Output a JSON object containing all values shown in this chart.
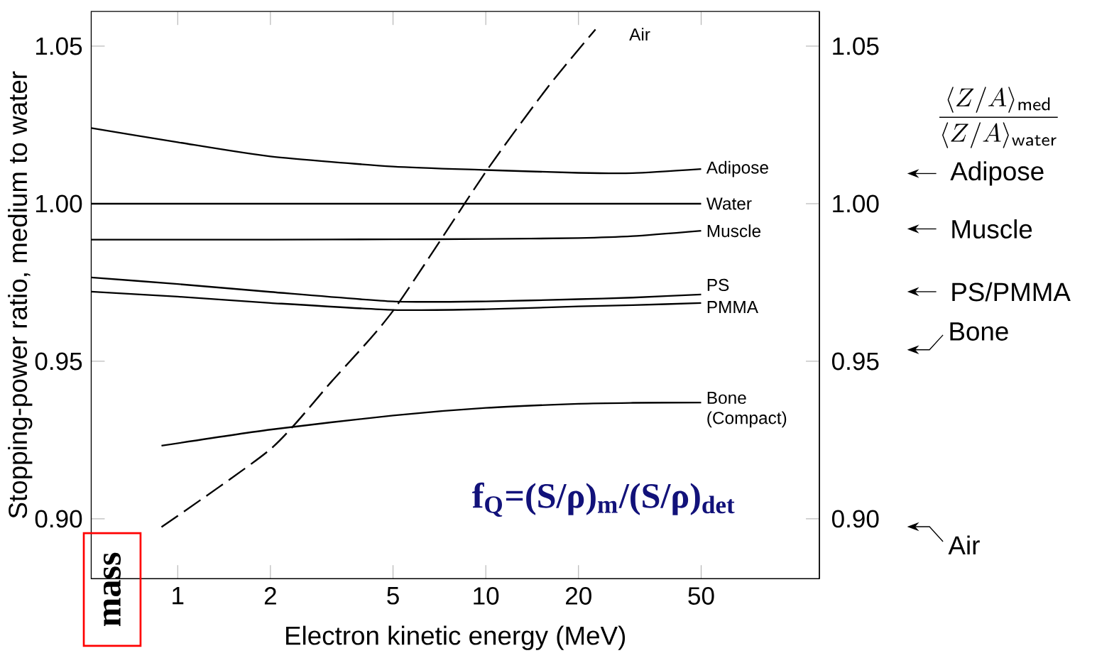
{
  "chart_data": {
    "type": "line",
    "xlabel": "Electron kinetic energy (MeV)",
    "ylabel": "Stopping-power ratio, medium to water",
    "y2label": "\\dfrac{\\langle Z/A\\rangle_{\\mathsf{med}}}{\\langle Z/A\\rangle_{\\mathsf{water}}}",
    "log": "x",
    "marker": "none",
    "xlim": [
      0.524,
      121
    ],
    "ylim": [
      0.881,
      1.061
    ],
    "y2lim": [
      0.881,
      1.061
    ],
    "xticks": [
      1,
      2,
      5,
      10,
      20,
      50
    ],
    "yticks": [
      {
        "value": 0.9,
        "label": "0.90"
      },
      {
        "value": 0.95,
        "label": "0.95"
      },
      {
        "value": 1.0,
        "label": "1.00"
      },
      {
        "value": 1.05,
        "label": "1.05"
      }
    ],
    "y2ticks": [
      {
        "value": 0.9,
        "label": "0.90"
      },
      {
        "value": 0.95,
        "label": "0.95"
      },
      {
        "value": 1.0,
        "label": "1.00"
      },
      {
        "value": 1.05,
        "label": "1.05"
      }
    ],
    "series": [
      {
        "name": "Adipose",
        "color": "#000000",
        "line_style": "solid",
        "x": [
          0.524,
          1,
          2,
          5,
          10,
          20,
          30,
          50
        ],
        "values": [
          1.024,
          1.0195,
          1.015,
          1.0118,
          1.0107,
          1.0098,
          1.0097,
          1.011
        ]
      },
      {
        "name": "Water",
        "color": "#000000",
        "line_style": "solid",
        "x": [
          0.524,
          1,
          2,
          5,
          10,
          20,
          30,
          50
        ],
        "values": [
          1.0,
          1.0,
          1.0,
          1.0,
          1.0,
          1.0,
          1.0,
          1.0
        ]
      },
      {
        "name": "Muscle",
        "color": "#000000",
        "line_style": "solid",
        "x": [
          0.524,
          1,
          2,
          5,
          10,
          20,
          30,
          50
        ],
        "values": [
          0.9886,
          0.9886,
          0.9886,
          0.9887,
          0.9888,
          0.9891,
          0.9897,
          0.9914
        ]
      },
      {
        "name": "PS",
        "color": "#000000",
        "line_style": "solid",
        "x": [
          0.524,
          1,
          2,
          5,
          10,
          20,
          30,
          50
        ],
        "values": [
          0.9766,
          0.9745,
          0.972,
          0.969,
          0.969,
          0.9697,
          0.9702,
          0.9712
        ]
      },
      {
        "name": "PMMA",
        "color": "#000000",
        "line_style": "solid",
        "x": [
          0.524,
          1,
          2,
          5,
          10,
          20,
          30,
          50
        ],
        "values": [
          0.9721,
          0.9705,
          0.9685,
          0.9663,
          0.9665,
          0.9674,
          0.9678,
          0.9685
        ]
      },
      {
        "name": "Bone (Compact)",
        "color": "#000000",
        "line_style": "solid",
        "x": [
          0.886,
          2,
          5,
          10,
          20,
          30,
          50
        ],
        "values": [
          0.9232,
          0.9283,
          0.9328,
          0.9352,
          0.9365,
          0.9368,
          0.9369
        ]
      },
      {
        "name": "Air",
        "color": "#000000",
        "line_style": "dashed",
        "x": [
          0.886,
          2,
          3.16,
          5,
          10,
          15.9,
          22.7
        ],
        "values": [
          0.8974,
          0.9221,
          0.9436,
          0.966,
          1.0101,
          1.037,
          1.0553
        ]
      }
    ],
    "annotations": [
      "f$_{Q}$=(S/ρ)$_{m}$/(S/ρ)$_{det}$",
      "mass",
      "Adipose",
      "Muscle",
      "PS/PMMA",
      "Bone",
      "Air"
    ]
  }
}
